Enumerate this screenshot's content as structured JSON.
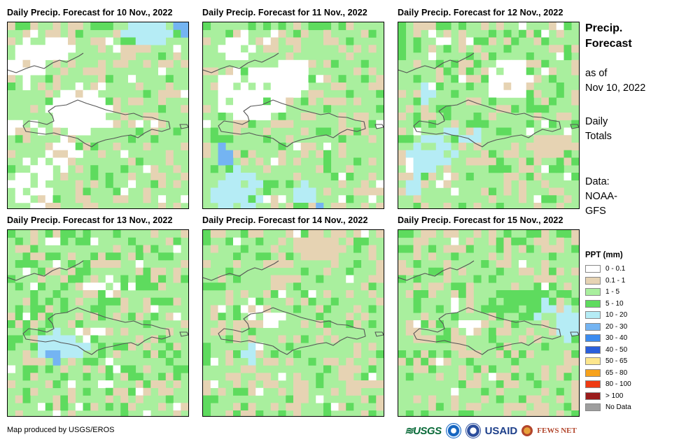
{
  "panels": [
    {
      "title": "Daily Precip. Forecast for 10 Nov., 2022",
      "date": "2022-11-10"
    },
    {
      "title": "Daily Precip. Forecast for 11 Nov., 2022",
      "date": "2022-11-11"
    },
    {
      "title": "Daily Precip. Forecast for 12 Nov., 2022",
      "date": "2022-11-12"
    },
    {
      "title": "Daily Precip. Forecast for 13 Nov., 2022",
      "date": "2022-11-13"
    },
    {
      "title": "Daily Precip. Forecast for 14 Nov., 2022",
      "date": "2022-11-14"
    },
    {
      "title": "Daily Precip. Forecast for 15 Nov., 2022",
      "date": "2022-11-15"
    }
  ],
  "side": {
    "title_line1": "Precip.",
    "title_line2": "Forecast",
    "asof_line1": "as of",
    "asof_line2": "Nov 10, 2022",
    "totals_line1": "Daily",
    "totals_line2": "Totals",
    "data_line1": "Data:",
    "data_line2": "NOAA-",
    "data_line3": "GFS"
  },
  "legend": {
    "title": "PPT (mm)",
    "items": [
      {
        "label": "0 - 0.1",
        "color": "#ffffff"
      },
      {
        "label": "0.1 - 1",
        "color": "#e6d3b3"
      },
      {
        "label": "1 - 5",
        "color": "#a9ef9e"
      },
      {
        "label": "5 - 10",
        "color": "#5edb5e"
      },
      {
        "label": "10 - 20",
        "color": "#b5ecf5"
      },
      {
        "label": "20 - 30",
        "color": "#74b4f2"
      },
      {
        "label": "30 - 40",
        "color": "#3c8cf0"
      },
      {
        "label": "40 - 50",
        "color": "#2a5fdb"
      },
      {
        "label": "50 - 65",
        "color": "#fde68c"
      },
      {
        "label": "65 - 80",
        "color": "#f7a21b"
      },
      {
        "label": "80 - 100",
        "color": "#ef3b13"
      },
      {
        "label": "> 100",
        "color": "#9a1c1c"
      },
      {
        "label": "No Data",
        "color": "#9e9e9e"
      }
    ]
  },
  "footer": {
    "credit": "Map produced by USGS/EROS"
  },
  "logos": {
    "usgs": "USGS",
    "usaid": "USAID",
    "fewsnet": "FEWS NET"
  }
}
